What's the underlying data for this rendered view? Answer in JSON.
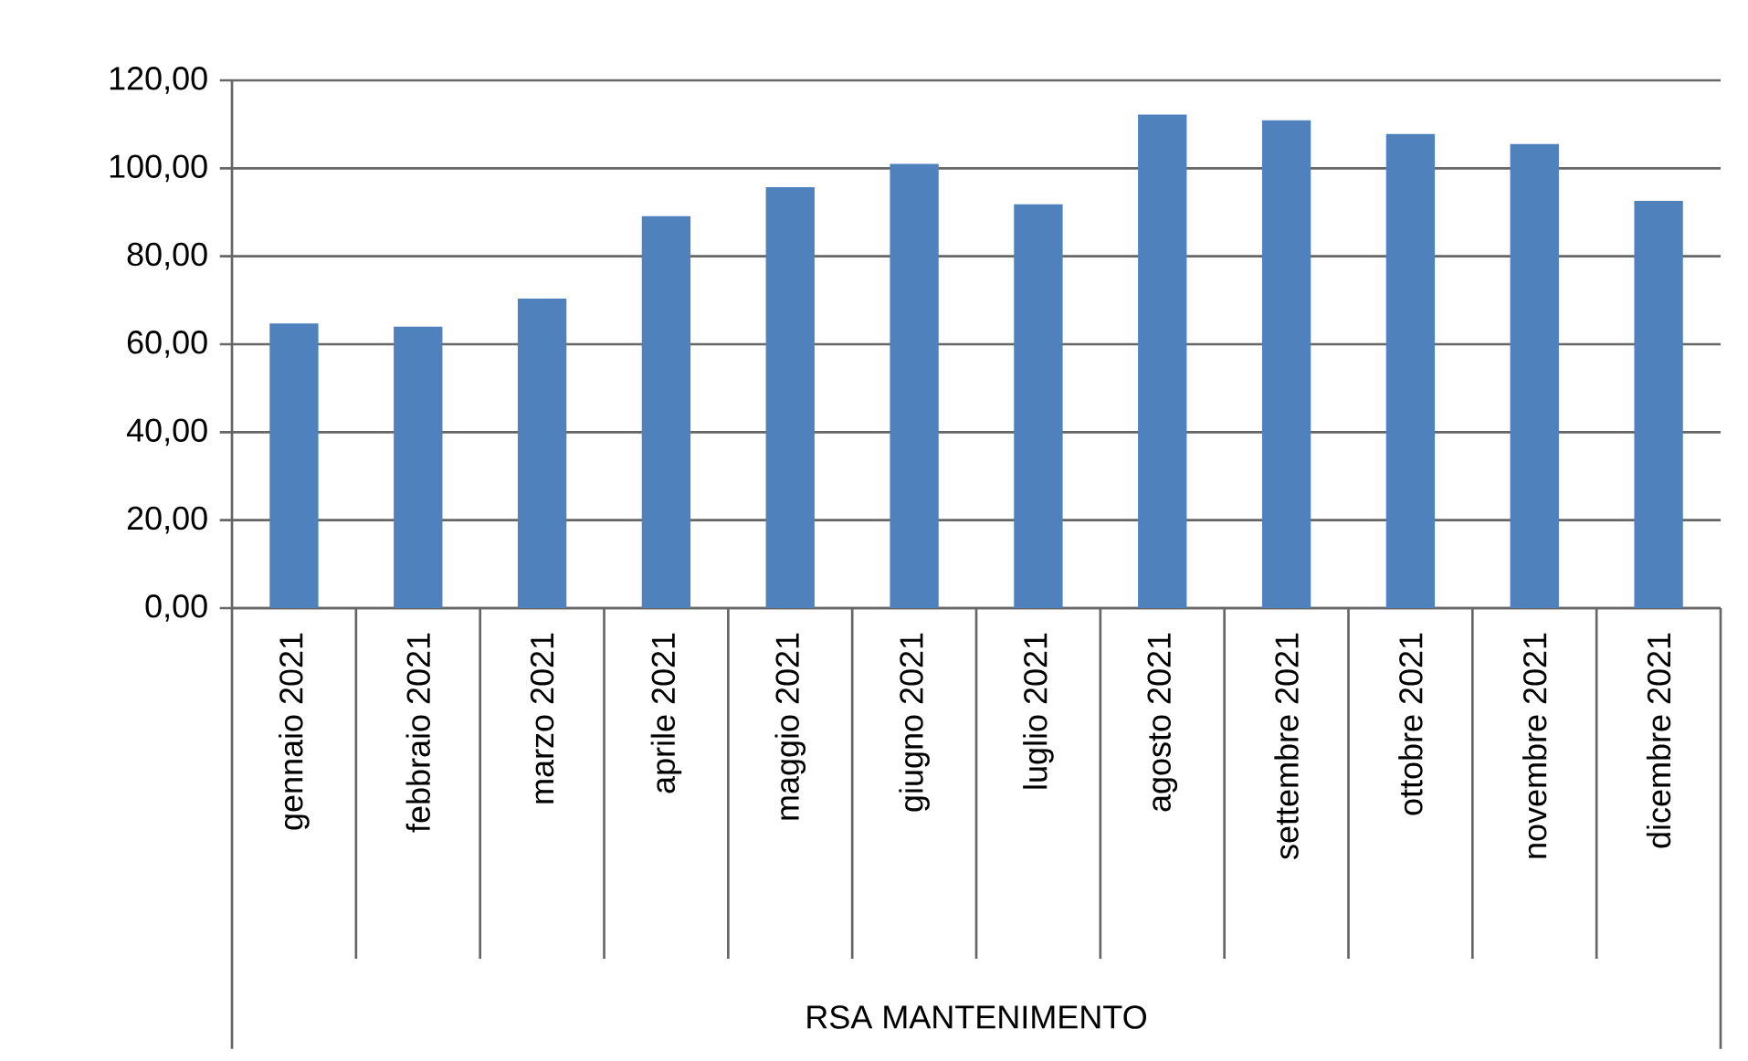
{
  "chart_data": {
    "type": "bar",
    "xlabel": "RSA MANTENIMENTO",
    "categories": [
      "gennaio 2021",
      "febbraio 2021",
      "marzo 2021",
      "aprile 2021",
      "maggio 2021",
      "giugno 2021",
      "luglio 2021",
      "agosto 2021",
      "settembre 2021",
      "ottobre 2021",
      "novembre 2021",
      "dicembre 2021"
    ],
    "values": [
      64.7,
      64.0,
      70.4,
      89.1,
      95.7,
      101.0,
      91.8,
      112.2,
      110.9,
      107.8,
      105.5,
      92.6
    ],
    "color": "#4f81bd",
    "ylim": [
      0,
      120
    ],
    "yticks": [
      {
        "value": 0,
        "label": "0,00"
      },
      {
        "value": 20,
        "label": "20,00"
      },
      {
        "value": 40,
        "label": "40,00"
      },
      {
        "value": 60,
        "label": "60,00"
      },
      {
        "value": 80,
        "label": "80,00"
      },
      {
        "value": 100,
        "label": "100,00"
      },
      {
        "value": 120,
        "label": "120,00"
      }
    ],
    "grid": "y"
  }
}
